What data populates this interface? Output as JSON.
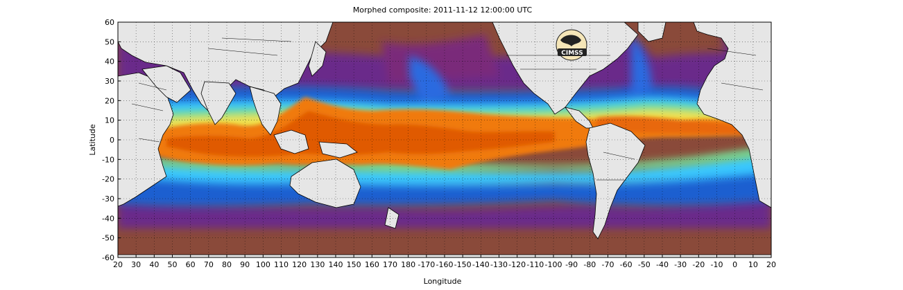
{
  "title": "Morphed composite: 2011-11-12 12:00:00 UTC",
  "xlabel": "Longitude",
  "ylabel": "Latitude",
  "x_ticks": [
    "20",
    "30",
    "40",
    "50",
    "60",
    "70",
    "80",
    "90",
    "100",
    "110",
    "120",
    "130",
    "140",
    "150",
    "160",
    "170",
    "180",
    "-170",
    "-160",
    "-150",
    "-140",
    "-130",
    "-120",
    "-110",
    "-100",
    "-90",
    "-80",
    "-70",
    "-60",
    "-50",
    "-40",
    "-30",
    "-20",
    "-10",
    "0",
    "10",
    "20"
  ],
  "y_ticks": [
    "60",
    "50",
    "40",
    "30",
    "20",
    "10",
    "0",
    "-10",
    "-20",
    "-30",
    "-40",
    "-50",
    "-60"
  ],
  "logo": {
    "text": "CIMSS",
    "icon": "cimss-logo-icon"
  },
  "colors": {
    "land": "#e6e6e6",
    "dry_brown": "#8a4a3a",
    "purple": "#6a2a8a",
    "blue": "#1f5fd0",
    "cyan": "#38c6ff",
    "green": "#7ee08a",
    "yellow": "#f4e04a",
    "orange": "#f07a10",
    "deep_orange": "#e05a00"
  }
}
